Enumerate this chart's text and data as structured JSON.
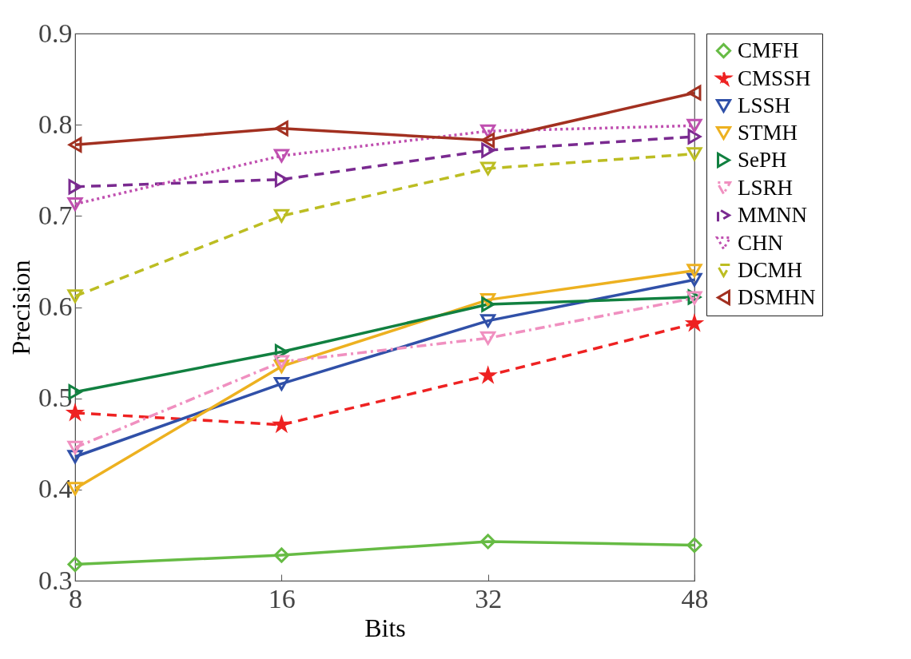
{
  "chart_data": {
    "type": "line",
    "xlabel": "Bits",
    "ylabel": "Precision",
    "categories": [
      "8",
      "16",
      "32",
      "48"
    ],
    "ylim": [
      0.3,
      0.9
    ],
    "yticks": [
      0.3,
      0.4,
      0.5,
      0.6,
      0.7,
      0.8,
      0.9
    ],
    "grid": false,
    "legend": "top right",
    "series": [
      {
        "name": "CMFH",
        "color": "#66bb44",
        "marker": "diamond",
        "line_style": "solid",
        "values": [
          0.318,
          0.328,
          0.343,
          0.339
        ]
      },
      {
        "name": "CMSSH",
        "color": "#ee2222",
        "marker": "star",
        "line_style": "dashed",
        "values": [
          0.484,
          0.471,
          0.525,
          0.582
        ]
      },
      {
        "name": "LSSH",
        "color": "#3050a8",
        "marker": "triangle-down",
        "line_style": "solid",
        "values": [
          0.436,
          0.516,
          0.585,
          0.63
        ]
      },
      {
        "name": "STMH",
        "color": "#edb120",
        "marker": "triangle-down",
        "line_style": "solid",
        "values": [
          0.401,
          0.535,
          0.608,
          0.64
        ]
      },
      {
        "name": "SePH",
        "color": "#118040",
        "marker": "triangle-right",
        "line_style": "solid",
        "values": [
          0.507,
          0.551,
          0.603,
          0.611
        ]
      },
      {
        "name": "LSRH",
        "color": "#f090c0",
        "marker": "triangle-down",
        "line_style": "dashdot",
        "values": [
          0.446,
          0.54,
          0.566,
          0.61
        ]
      },
      {
        "name": "MMNN",
        "color": "#7a2a90",
        "marker": "triangle-right",
        "line_style": "dashed",
        "values": [
          0.732,
          0.74,
          0.772,
          0.787
        ]
      },
      {
        "name": "CHN",
        "color": "#c050b0",
        "marker": "triangle-down",
        "line_style": "dotted",
        "values": [
          0.713,
          0.766,
          0.793,
          0.799
        ]
      },
      {
        "name": "DCMH",
        "color": "#bcbd22",
        "marker": "triangle-down",
        "line_style": "dashed",
        "values": [
          0.612,
          0.7,
          0.752,
          0.768
        ]
      },
      {
        "name": "DSMHN",
        "color": "#a23020",
        "marker": "triangle-left",
        "line_style": "solid",
        "values": [
          0.778,
          0.796,
          0.783,
          0.835
        ]
      }
    ]
  }
}
